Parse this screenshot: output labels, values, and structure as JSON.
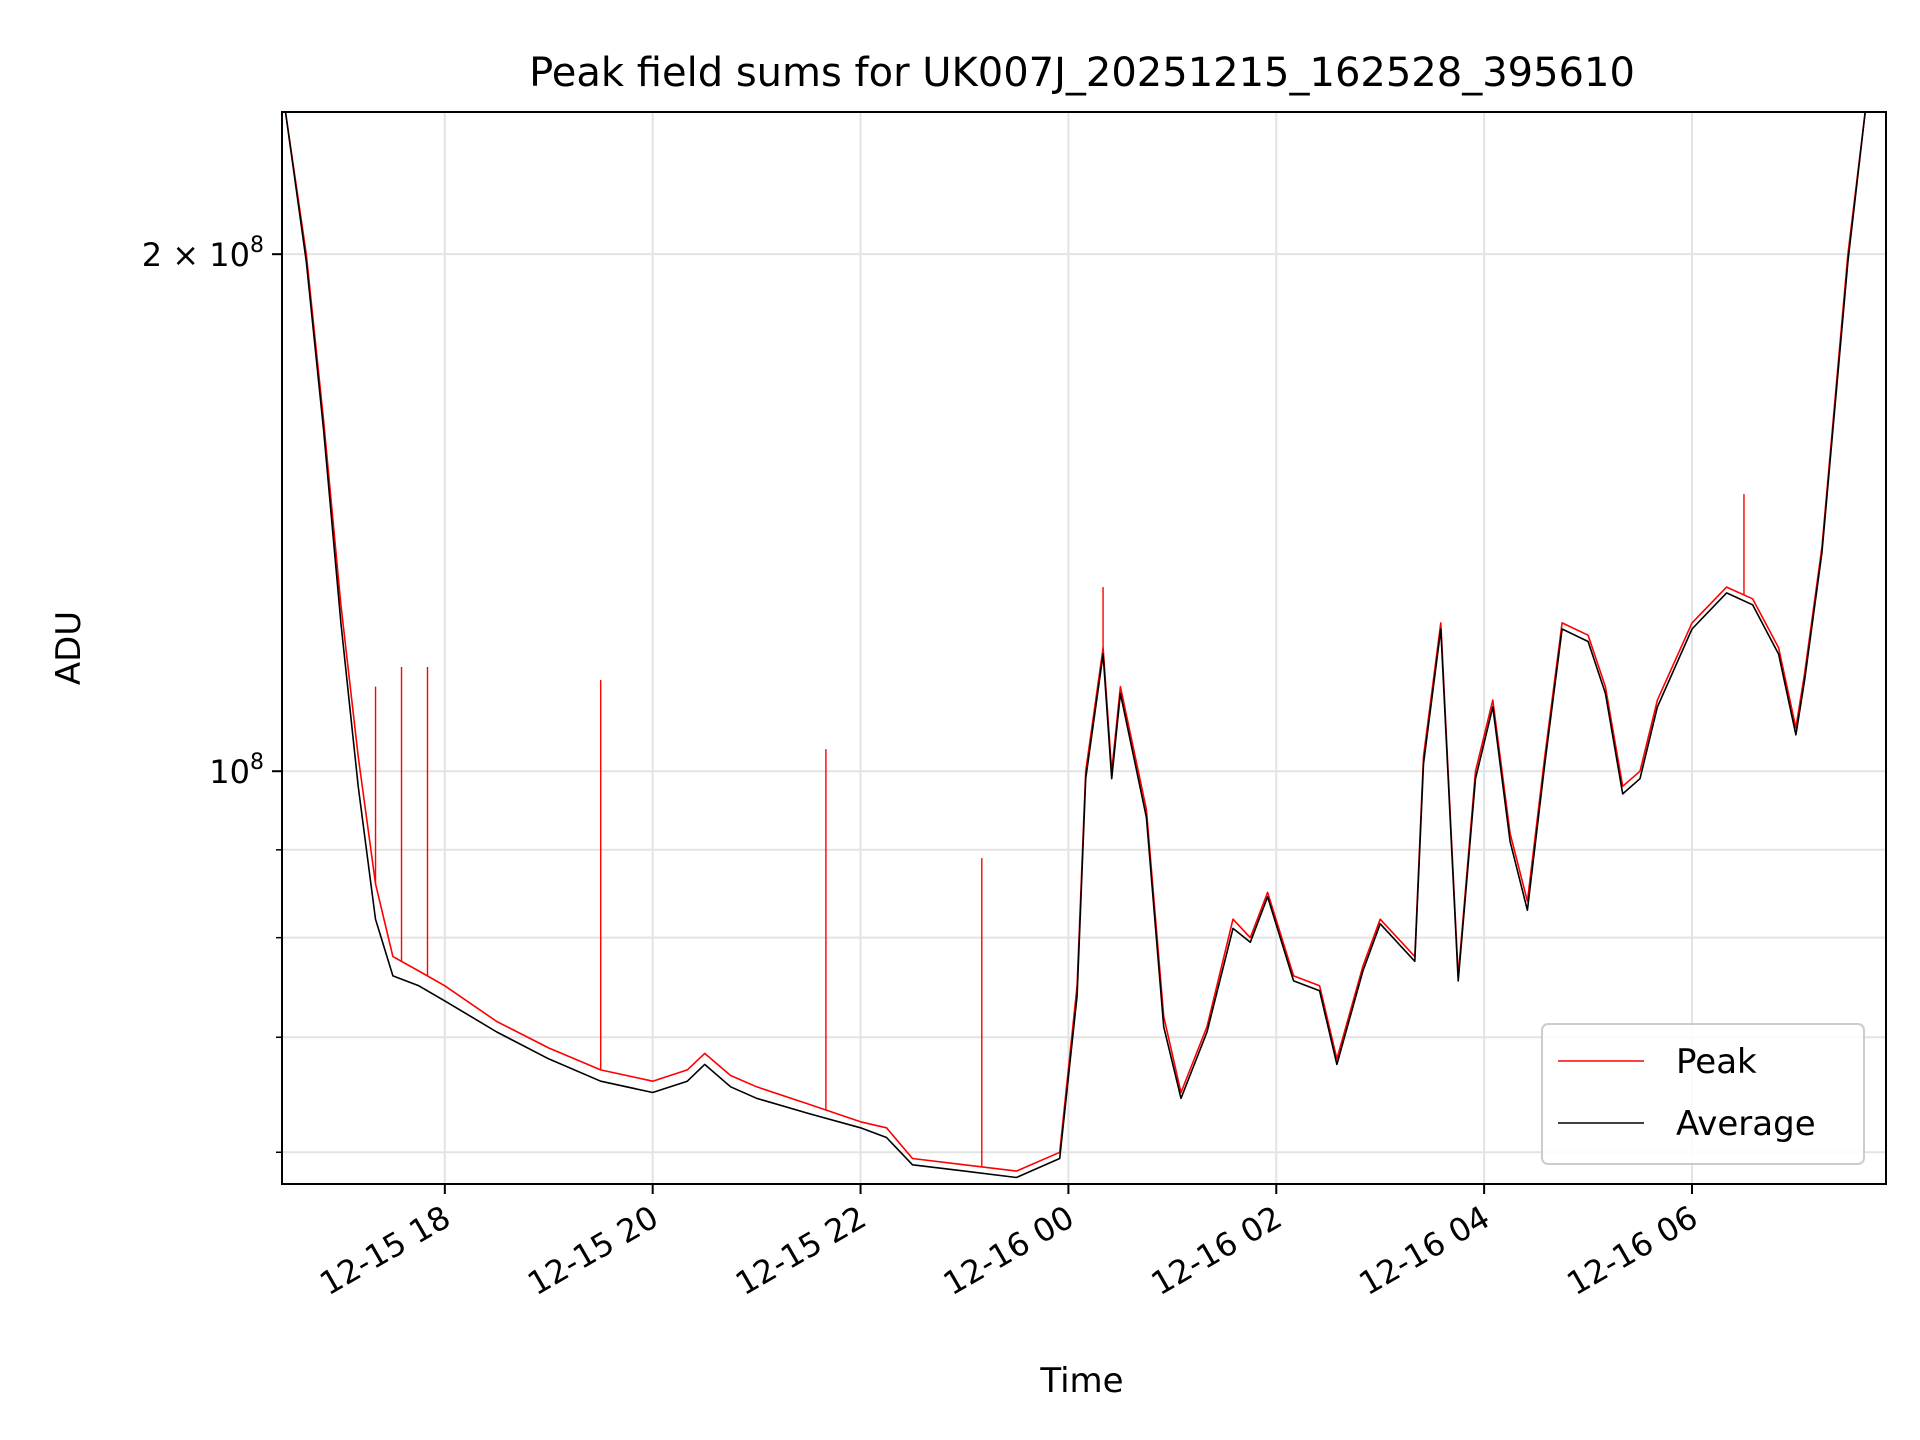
{
  "chart_data": {
    "type": "line",
    "title": "Peak field sums for UK007J_20251215_162528_395610",
    "xlabel": "Time",
    "ylabel": "ADU",
    "yscale": "log",
    "grid": true,
    "legend_position": "lower-right",
    "xlim": [
      "2025-12-15 16:26",
      "2025-12-16 07:52"
    ],
    "ylim": [
      57500000,
      242000000
    ],
    "x_ticks": [
      {
        "label": "12-15 18",
        "value": "2025-12-15 18:00"
      },
      {
        "label": "12-15 20",
        "value": "2025-12-15 20:00"
      },
      {
        "label": "12-15 22",
        "value": "2025-12-15 22:00"
      },
      {
        "label": "12-16 00",
        "value": "2025-12-16 00:00"
      },
      {
        "label": "12-16 02",
        "value": "2025-12-16 02:00"
      },
      {
        "label": "12-16 04",
        "value": "2025-12-16 04:00"
      },
      {
        "label": "12-16 06",
        "value": "2025-12-16 06:00"
      }
    ],
    "y_major_ticks": [
      {
        "base": "10",
        "exp": "8",
        "coef": "",
        "value": 100000000
      },
      {
        "base": "10",
        "exp": "8",
        "coef": "2",
        "value": 200000000
      }
    ],
    "y_minor_ticks": [
      60000000,
      70000000,
      80000000,
      90000000
    ],
    "series": [
      {
        "name": "Peak",
        "color": "#ff0000",
        "points": [
          [
            "2025-12-15 16:28",
            242000000
          ],
          [
            "2025-12-15 16:40",
            200000000
          ],
          [
            "2025-12-15 16:50",
            160000000
          ],
          [
            "2025-12-15 17:00",
            125000000
          ],
          [
            "2025-12-15 17:10",
            102000000
          ],
          [
            "2025-12-15 17:20",
            86000000
          ],
          [
            "2025-12-15 17:30",
            78000000
          ],
          [
            "2025-12-15 17:45",
            76500000
          ],
          [
            "2025-12-15 18:00",
            75000000
          ],
          [
            "2025-12-15 18:30",
            71500000
          ],
          [
            "2025-12-15 19:00",
            69000000
          ],
          [
            "2025-12-15 19:30",
            67000000
          ],
          [
            "2025-12-15 20:00",
            66000000
          ],
          [
            "2025-12-15 20:20",
            67000000
          ],
          [
            "2025-12-15 20:30",
            68500000
          ],
          [
            "2025-12-15 20:45",
            66500000
          ],
          [
            "2025-12-15 21:00",
            65500000
          ],
          [
            "2025-12-15 21:30",
            64000000
          ],
          [
            "2025-12-15 22:00",
            62500000
          ],
          [
            "2025-12-15 22:15",
            62000000
          ],
          [
            "2025-12-15 22:30",
            59500000
          ],
          [
            "2025-12-15 23:00",
            59000000
          ],
          [
            "2025-12-15 23:30",
            58500000
          ],
          [
            "2025-12-15 23:55",
            60000000
          ],
          [
            "2025-12-16 00:05",
            75000000
          ],
          [
            "2025-12-16 00:10",
            100000000
          ],
          [
            "2025-12-16 00:20",
            118000000
          ],
          [
            "2025-12-16 00:25",
            100000000
          ],
          [
            "2025-12-16 00:30",
            112000000
          ],
          [
            "2025-12-16 00:45",
            95000000
          ],
          [
            "2025-12-16 00:55",
            72000000
          ],
          [
            "2025-12-16 01:05",
            65000000
          ],
          [
            "2025-12-16 01:20",
            71000000
          ],
          [
            "2025-12-16 01:35",
            82000000
          ],
          [
            "2025-12-16 01:45",
            80000000
          ],
          [
            "2025-12-16 01:55",
            85000000
          ],
          [
            "2025-12-16 02:10",
            76000000
          ],
          [
            "2025-12-16 02:25",
            75000000
          ],
          [
            "2025-12-16 02:35",
            68000000
          ],
          [
            "2025-12-16 02:50",
            77000000
          ],
          [
            "2025-12-16 03:00",
            82000000
          ],
          [
            "2025-12-16 03:20",
            78000000
          ],
          [
            "2025-12-16 03:25",
            102000000
          ],
          [
            "2025-12-16 03:35",
            122000000
          ],
          [
            "2025-12-16 03:45",
            76000000
          ],
          [
            "2025-12-16 03:55",
            100000000
          ],
          [
            "2025-12-16 04:05",
            110000000
          ],
          [
            "2025-12-16 04:15",
            92000000
          ],
          [
            "2025-12-16 04:25",
            84000000
          ],
          [
            "2025-12-16 04:35",
            102000000
          ],
          [
            "2025-12-16 04:45",
            122000000
          ],
          [
            "2025-12-16 05:00",
            120000000
          ],
          [
            "2025-12-16 05:10",
            112000000
          ],
          [
            "2025-12-16 05:20",
            98000000
          ],
          [
            "2025-12-16 05:30",
            100000000
          ],
          [
            "2025-12-16 05:40",
            110000000
          ],
          [
            "2025-12-16 06:00",
            122000000
          ],
          [
            "2025-12-16 06:20",
            128000000
          ],
          [
            "2025-12-16 06:35",
            126000000
          ],
          [
            "2025-12-16 06:50",
            118000000
          ],
          [
            "2025-12-16 07:00",
            106000000
          ],
          [
            "2025-12-16 07:05",
            114000000
          ],
          [
            "2025-12-16 07:15",
            135000000
          ],
          [
            "2025-12-16 07:30",
            200000000
          ],
          [
            "2025-12-16 07:40",
            242000000
          ]
        ],
        "spikes": [
          [
            "2025-12-15 17:20",
            112000000
          ],
          [
            "2025-12-15 17:35",
            115000000
          ],
          [
            "2025-12-15 17:50",
            115000000
          ],
          [
            "2025-12-15 19:30",
            113000000
          ],
          [
            "2025-12-15 21:40",
            103000000
          ],
          [
            "2025-12-15 23:10",
            89000000
          ],
          [
            "2025-12-16 00:20",
            128000000
          ],
          [
            "2025-12-16 06:30",
            145000000
          ]
        ]
      },
      {
        "name": "Average",
        "color": "#000000",
        "points": [
          [
            "2025-12-15 16:28",
            242000000
          ],
          [
            "2025-12-15 16:40",
            198000000
          ],
          [
            "2025-12-15 16:50",
            158000000
          ],
          [
            "2025-12-15 17:00",
            122000000
          ],
          [
            "2025-12-15 17:10",
            98000000
          ],
          [
            "2025-12-15 17:20",
            82000000
          ],
          [
            "2025-12-15 17:30",
            76000000
          ],
          [
            "2025-12-15 17:45",
            75000000
          ],
          [
            "2025-12-15 18:00",
            73500000
          ],
          [
            "2025-12-15 18:30",
            70500000
          ],
          [
            "2025-12-15 19:00",
            68000000
          ],
          [
            "2025-12-15 19:30",
            66000000
          ],
          [
            "2025-12-15 20:00",
            65000000
          ],
          [
            "2025-12-15 20:20",
            66000000
          ],
          [
            "2025-12-15 20:30",
            67500000
          ],
          [
            "2025-12-15 20:45",
            65500000
          ],
          [
            "2025-12-15 21:00",
            64500000
          ],
          [
            "2025-12-15 21:30",
            63200000
          ],
          [
            "2025-12-15 22:00",
            62000000
          ],
          [
            "2025-12-15 22:15",
            61200000
          ],
          [
            "2025-12-15 22:30",
            59000000
          ],
          [
            "2025-12-15 23:00",
            58500000
          ],
          [
            "2025-12-15 23:30",
            58000000
          ],
          [
            "2025-12-15 23:55",
            59500000
          ],
          [
            "2025-12-16 00:05",
            74000000
          ],
          [
            "2025-12-16 00:10",
            99000000
          ],
          [
            "2025-12-16 00:20",
            117000000
          ],
          [
            "2025-12-16 00:25",
            99000000
          ],
          [
            "2025-12-16 00:30",
            111000000
          ],
          [
            "2025-12-16 00:45",
            94000000
          ],
          [
            "2025-12-16 00:55",
            71000000
          ],
          [
            "2025-12-16 01:05",
            64500000
          ],
          [
            "2025-12-16 01:20",
            70500000
          ],
          [
            "2025-12-16 01:35",
            81000000
          ],
          [
            "2025-12-16 01:45",
            79500000
          ],
          [
            "2025-12-16 01:55",
            84500000
          ],
          [
            "2025-12-16 02:10",
            75500000
          ],
          [
            "2025-12-16 02:25",
            74500000
          ],
          [
            "2025-12-16 02:35",
            67500000
          ],
          [
            "2025-12-16 02:50",
            76500000
          ],
          [
            "2025-12-16 03:00",
            81500000
          ],
          [
            "2025-12-16 03:20",
            77500000
          ],
          [
            "2025-12-16 03:25",
            101000000
          ],
          [
            "2025-12-16 03:35",
            121000000
          ],
          [
            "2025-12-16 03:45",
            75500000
          ],
          [
            "2025-12-16 03:55",
            99000000
          ],
          [
            "2025-12-16 04:05",
            109000000
          ],
          [
            "2025-12-16 04:15",
            91000000
          ],
          [
            "2025-12-16 04:25",
            83000000
          ],
          [
            "2025-12-16 04:35",
            101000000
          ],
          [
            "2025-12-16 04:45",
            121000000
          ],
          [
            "2025-12-16 05:00",
            119000000
          ],
          [
            "2025-12-16 05:10",
            111000000
          ],
          [
            "2025-12-16 05:20",
            97000000
          ],
          [
            "2025-12-16 05:30",
            99000000
          ],
          [
            "2025-12-16 05:40",
            109000000
          ],
          [
            "2025-12-16 06:00",
            121000000
          ],
          [
            "2025-12-16 06:20",
            127000000
          ],
          [
            "2025-12-16 06:35",
            125000000
          ],
          [
            "2025-12-16 06:50",
            117000000
          ],
          [
            "2025-12-16 07:00",
            105000000
          ],
          [
            "2025-12-16 07:05",
            113000000
          ],
          [
            "2025-12-16 07:15",
            134000000
          ],
          [
            "2025-12-16 07:30",
            198000000
          ],
          [
            "2025-12-16 07:40",
            242000000
          ]
        ]
      }
    ]
  }
}
